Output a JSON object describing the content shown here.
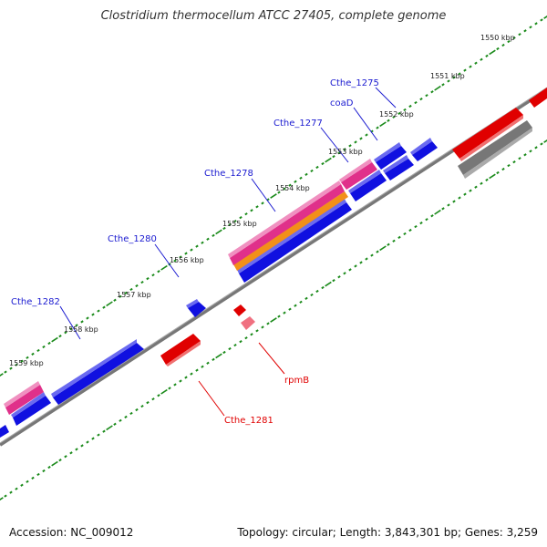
{
  "title": "Clostridium thermocellum ATCC 27405, complete genome",
  "accession": "Accession: NC_009012",
  "topology": "Topology: circular; Length: 3,843,301 bp; Genes: 3,259",
  "colors": {
    "forward_gene": "#1010e0",
    "reverse_gene": "#e00000",
    "pink_feature": "#e0308a",
    "orange_feature": "#f29019",
    "gray_feature": "#777777",
    "backbone": "#777777",
    "tick": "#1a8a1a"
  },
  "kbp_labels": [
    "1550 kbp",
    "1551 kbp",
    "1552 kbp",
    "1553 kbp",
    "1554 kbp",
    "1555 kbp",
    "1556 kbp",
    "1557 kbp",
    "1558 kbp",
    "1559 kbp"
  ],
  "gene_labels_forward": [
    "Cthe_1275",
    "coaD",
    "Cthe_1277",
    "Cthe_1278",
    "Cthe_1280",
    "Cthe_1282"
  ],
  "gene_labels_reverse": [
    "rpmB",
    "Cthe_1281"
  ]
}
